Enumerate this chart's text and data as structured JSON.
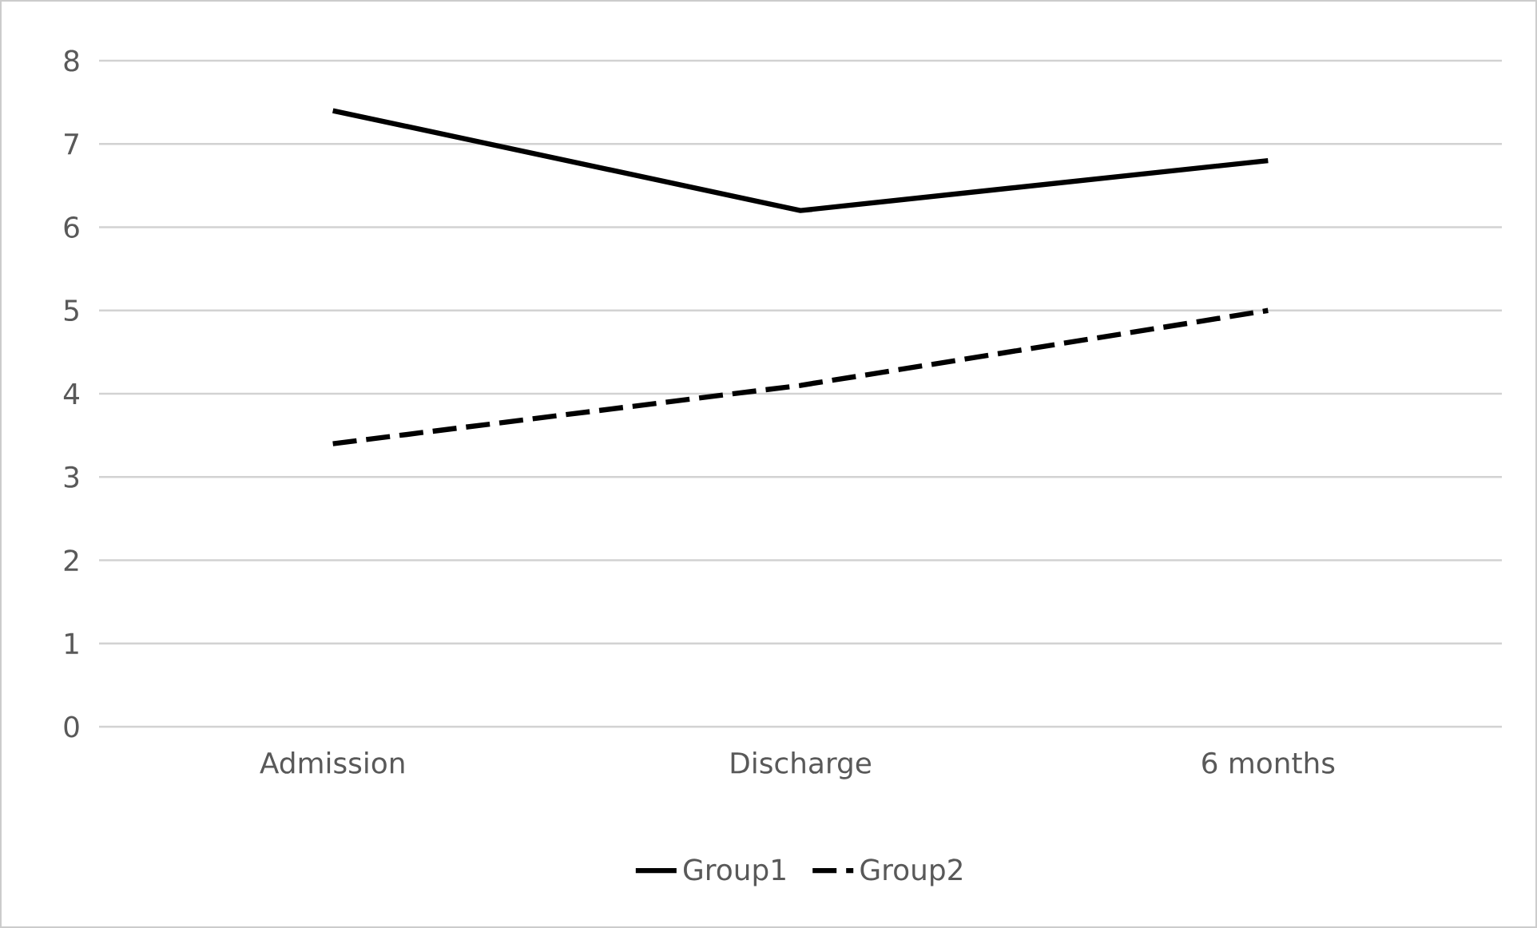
{
  "chart_data": {
    "type": "line",
    "categories": [
      "Admission",
      "Discharge",
      "6 months"
    ],
    "series": [
      {
        "name": "Group1",
        "color": "#000000",
        "values": [
          7.4,
          6.2,
          6.8
        ],
        "line_style": "solid"
      },
      {
        "name": "Group2",
        "color": "#000000",
        "values": [
          3.4,
          4.1,
          5.0
        ],
        "line_style": "dashed"
      }
    ],
    "ylim": [
      0,
      8
    ],
    "yticks": [
      0,
      1,
      2,
      3,
      4,
      5,
      6,
      7,
      8
    ],
    "grid": "y",
    "legend": "bottom",
    "marker": "none"
  }
}
